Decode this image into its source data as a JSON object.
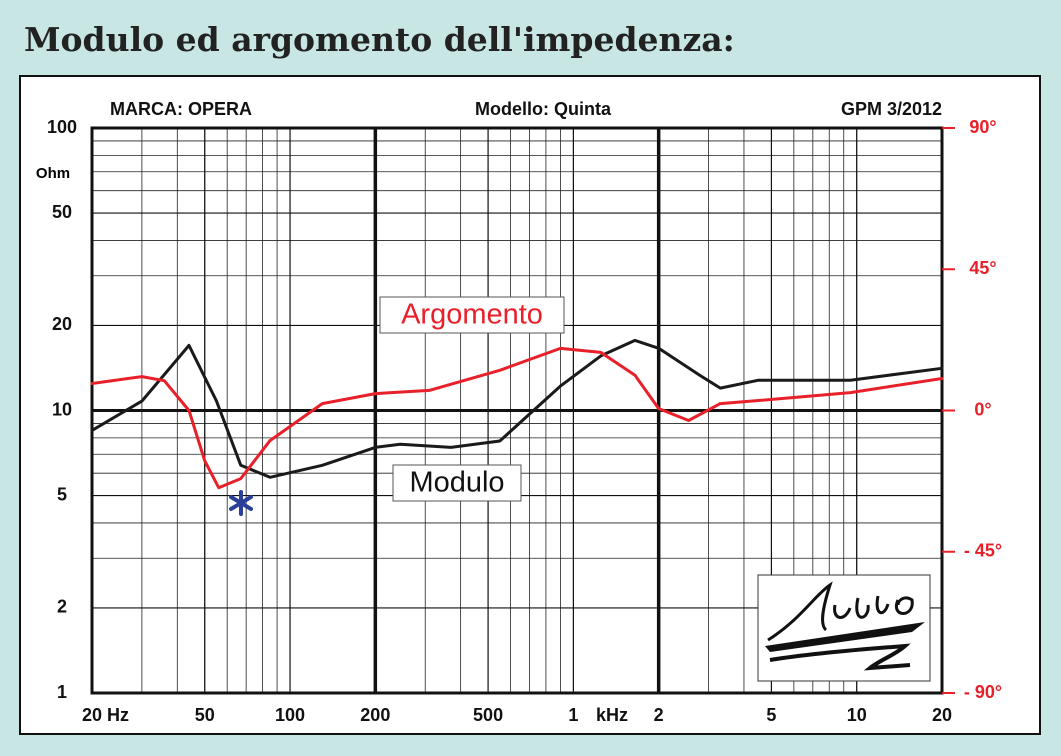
{
  "chart_data": {
    "type": "line",
    "title": "Modulo ed argomento dell'impedenza:",
    "header": [
      "MARCA: OPERA",
      "Modello: Quinta",
      "GPM 3/2012"
    ],
    "y_unit": "Ohm",
    "x_unit": "kHz",
    "log_x": true,
    "log_y": true,
    "grid": true,
    "xlim": [
      20,
      20000
    ],
    "xticks": [
      {
        "value": 20,
        "label": "20 Hz"
      },
      50,
      100,
      200,
      500,
      {
        "value": 1000,
        "label": "1"
      },
      {
        "value": 2000,
        "label": "2"
      },
      {
        "value": 5000,
        "label": "5"
      },
      {
        "value": 10000,
        "label": "10"
      },
      {
        "value": 20000,
        "label": "20"
      }
    ],
    "ylim": [
      1,
      100
    ],
    "yticks": [
      1,
      2,
      5,
      10,
      20,
      50,
      100
    ],
    "y2lim": [
      -90,
      90
    ],
    "y2ticks": [
      {
        "value": -90,
        "label": "- 90°"
      },
      {
        "value": -45,
        "label": "- 45°"
      },
      {
        "value": 0,
        "label": "0°"
      },
      {
        "value": 45,
        "label": "45°"
      },
      {
        "value": 90,
        "label": "90°"
      }
    ],
    "series": [
      {
        "name": "Modulo",
        "color": "#1a1a1a",
        "x": [
          20,
          30,
          44,
          55,
          67,
          85,
          130,
          200,
          245,
          370,
          550,
          900,
          1250,
          1650,
          2000,
          2800,
          3300,
          4500,
          9500,
          20000
        ],
        "values": [
          8.5,
          10.8,
          17,
          10.8,
          6.4,
          5.8,
          6.4,
          7.4,
          7.6,
          7.4,
          7.8,
          12.2,
          15.6,
          17.7,
          16.6,
          13.3,
          12,
          12.8,
          12.8,
          14.1
        ]
      },
      {
        "name": "Argomento",
        "color": "#e8202a",
        "axis": "y2",
        "x": [
          20,
          30,
          36,
          44,
          50,
          56,
          67,
          85,
          130,
          200,
          310,
          550,
          900,
          1250,
          1650,
          2000,
          2550,
          3300,
          4500,
          9500,
          20000
        ],
        "values": [
          8.6,
          10.8,
          9.5,
          0,
          -16,
          -24.6,
          -21.7,
          -9.6,
          2.2,
          5.4,
          6.4,
          12.8,
          19.8,
          18.5,
          11.2,
          0.6,
          -3.2,
          2.2,
          3.2,
          5.7,
          10.2
        ]
      }
    ]
  }
}
